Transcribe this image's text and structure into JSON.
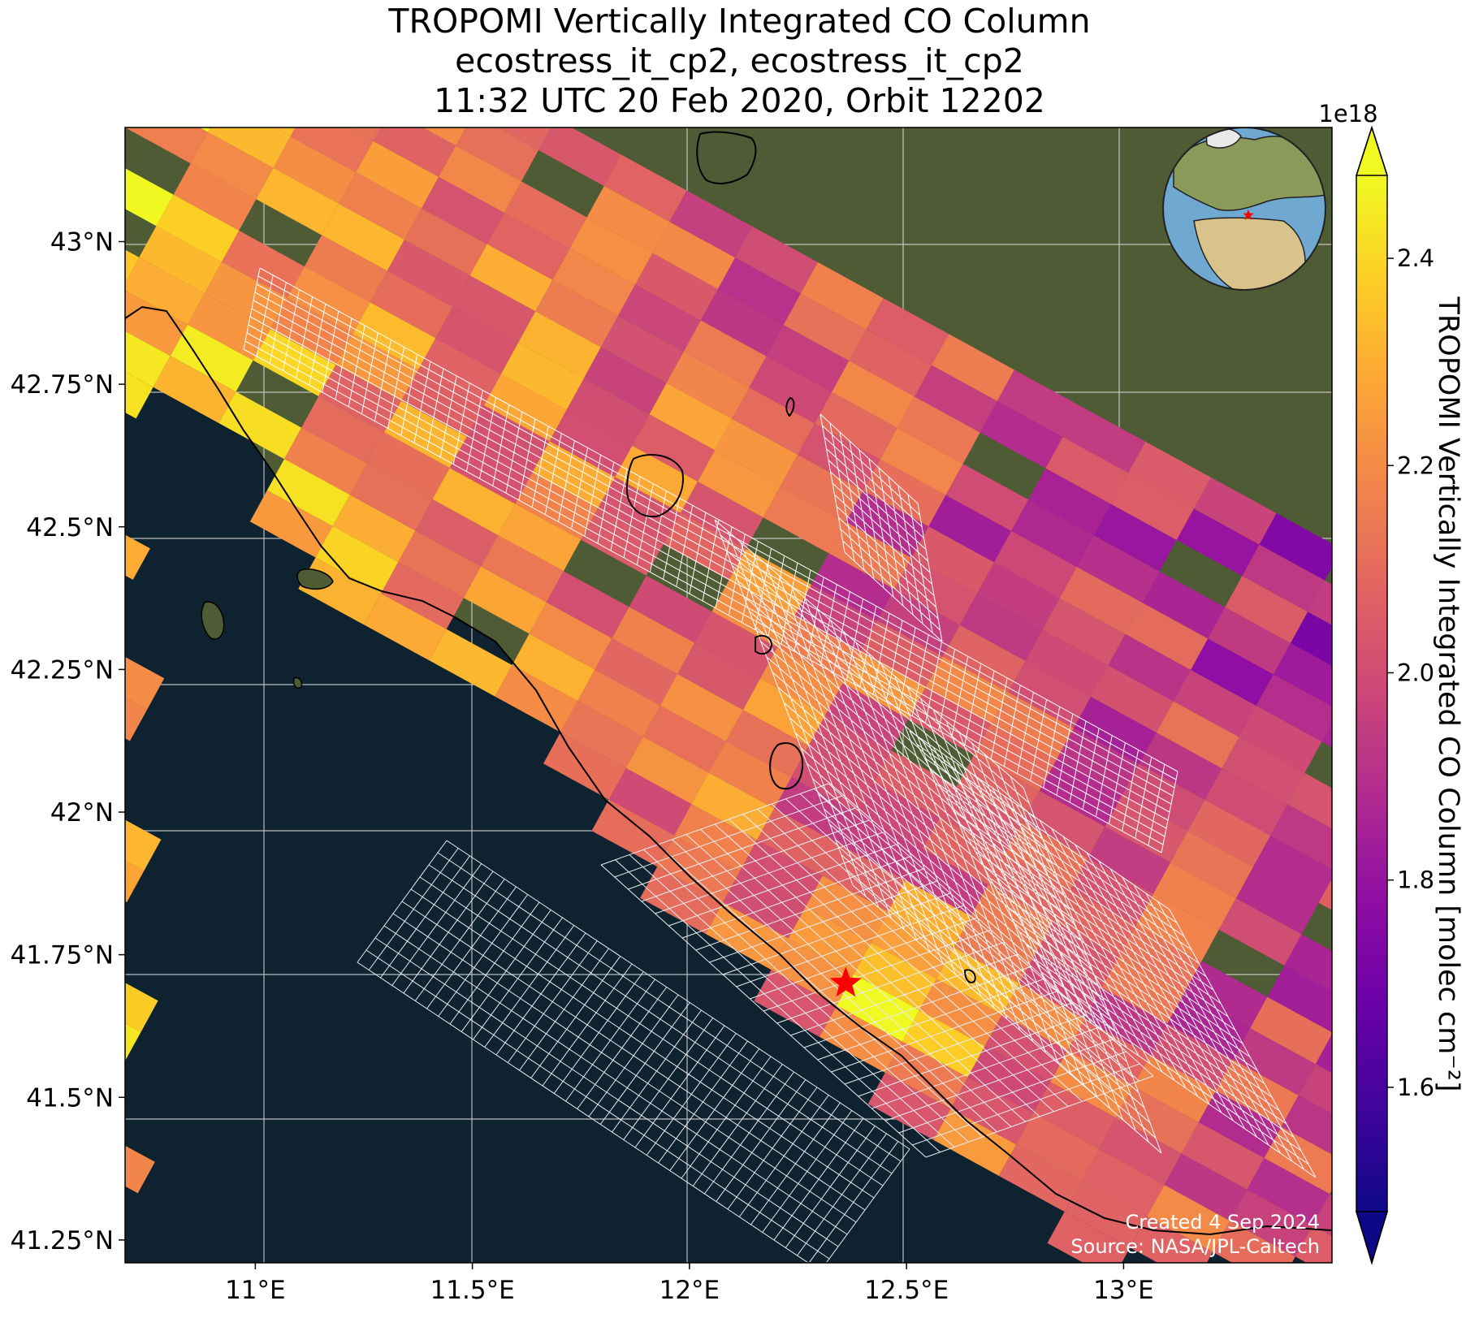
{
  "title": {
    "line1": "TROPOMI Vertically Integrated CO Column",
    "line2": "ecostress_it_cp2, ecostress_it_cp2",
    "line3": "11:32 UTC 20 Feb 2020, Orbit 12202"
  },
  "chart_data": {
    "type": "heatmap",
    "map_extent": {
      "lon": [
        10.7,
        13.48
      ],
      "lat": [
        41.21,
        43.2
      ]
    },
    "x_ticks": [
      {
        "value": 11.0,
        "label": "11°E"
      },
      {
        "value": 11.5,
        "label": "11.5°E"
      },
      {
        "value": 12.0,
        "label": "12°E"
      },
      {
        "value": 12.5,
        "label": "12.5°E"
      },
      {
        "value": 13.0,
        "label": "13°E"
      }
    ],
    "y_ticks": [
      {
        "value": 43.0,
        "label": "43°N"
      },
      {
        "value": 42.75,
        "label": "42.75°N"
      },
      {
        "value": 42.5,
        "label": "42.5°N"
      },
      {
        "value": 42.25,
        "label": "42.25°N"
      },
      {
        "value": 42.0,
        "label": "42°N"
      },
      {
        "value": 41.75,
        "label": "41.75°N"
      },
      {
        "value": 41.5,
        "label": "41.5°N"
      },
      {
        "value": 41.25,
        "label": "41.25°N"
      }
    ],
    "grid": true,
    "colorbar": {
      "label": "TROPOMI Vertically Integrated CO Column [molec cm⁻²]",
      "exponent": "1e18",
      "range": [
        1.48,
        2.48
      ],
      "ticks": [
        1.6,
        1.8,
        2.0,
        2.2,
        2.4
      ],
      "tick_labels": [
        "1.6",
        "1.8",
        "2.0",
        "2.2",
        "2.4"
      ],
      "colormap": "plasma",
      "extend": "both"
    },
    "site_marker": {
      "lon": 12.36,
      "lat": 41.7,
      "symbol": "star",
      "color": "#ff0000"
    },
    "inset_globe": {
      "type": "orthographic globe",
      "marker_color": "#ff0000"
    }
  },
  "credits": {
    "created": "Created 4 Sep 2024",
    "source": "Source: NASA/JPL-Caltech"
  },
  "colors": {
    "sea": "#0f2230",
    "land": "#4f5b35",
    "grid": "#d8d8d8",
    "marker": "#ff0000"
  }
}
